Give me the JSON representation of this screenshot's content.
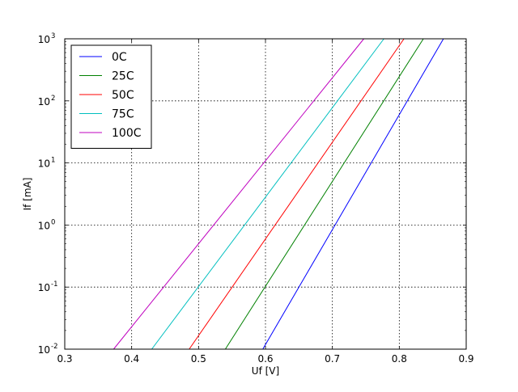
{
  "chart_data": {
    "type": "line",
    "title": "",
    "xlabel": "Uf [V]",
    "ylabel": "If [mA]",
    "xlim": [
      0.3,
      0.9
    ],
    "ylim": [
      0.01,
      1000
    ],
    "yscale": "log",
    "grid": true,
    "legend_position": "top-left",
    "x_ticks": [
      {
        "value": 0.3,
        "label": "0.3"
      },
      {
        "value": 0.4,
        "label": "0.4"
      },
      {
        "value": 0.5,
        "label": "0.5"
      },
      {
        "value": 0.6,
        "label": "0.6"
      },
      {
        "value": 0.7,
        "label": "0.7"
      },
      {
        "value": 0.8,
        "label": "0.8"
      },
      {
        "value": 0.9,
        "label": "0.9"
      }
    ],
    "y_ticks": [
      {
        "value": 0.01,
        "base": "10",
        "exp": "-2"
      },
      {
        "value": 0.1,
        "base": "10",
        "exp": "-1"
      },
      {
        "value": 1,
        "base": "10",
        "exp": "0"
      },
      {
        "value": 10,
        "base": "10",
        "exp": "1"
      },
      {
        "value": 100,
        "base": "10",
        "exp": "2"
      },
      {
        "value": 1000,
        "base": "10",
        "exp": "3"
      }
    ],
    "series": [
      {
        "name": "0C",
        "color": "#0000ff",
        "points": [
          [
            0.596,
            0.01
          ],
          [
            0.866,
            1000
          ]
        ]
      },
      {
        "name": "25C",
        "color": "#008000",
        "points": [
          [
            0.54,
            0.01
          ],
          [
            0.836,
            1000
          ]
        ]
      },
      {
        "name": "50C",
        "color": "#ff0000",
        "points": [
          [
            0.486,
            0.01
          ],
          [
            0.807,
            1000
          ]
        ]
      },
      {
        "name": "75C",
        "color": "#00bfbf",
        "points": [
          [
            0.43,
            0.01
          ],
          [
            0.777,
            1000
          ]
        ]
      },
      {
        "name": "100C",
        "color": "#bf00bf",
        "points": [
          [
            0.373,
            0.01
          ],
          [
            0.747,
            1000
          ]
        ]
      }
    ]
  }
}
